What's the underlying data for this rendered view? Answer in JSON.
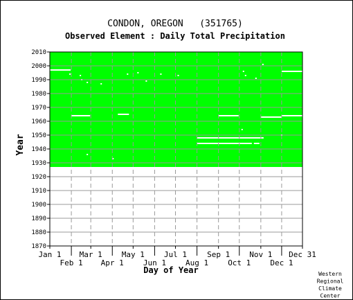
{
  "chart_data": {
    "type": "heatmap",
    "title": "CONDON, OREGON   (351765)",
    "subtitle": "Observed Element : Daily Total Precipitation",
    "xlabel": "Day of Year",
    "ylabel": "Year",
    "xlim": [
      1,
      365
    ],
    "ylim": [
      1870,
      2010
    ],
    "x_ticks_top": [
      {
        "label": "Jan 1",
        "day": 1
      },
      {
        "label": "Mar 1",
        "day": 60
      },
      {
        "label": "May 1",
        "day": 121
      },
      {
        "label": "Jul 1",
        "day": 182
      },
      {
        "label": "Sep 1",
        "day": 244
      },
      {
        "label": "Nov 1",
        "day": 305
      },
      {
        "label": "Dec 31",
        "day": 365
      }
    ],
    "x_ticks_bottom": [
      {
        "label": "Feb 1",
        "day": 32
      },
      {
        "label": "Apr 1",
        "day": 91
      },
      {
        "label": "Jun 1",
        "day": 152
      },
      {
        "label": "Aug 1",
        "day": 213
      },
      {
        "label": "Oct 1",
        "day": 274
      },
      {
        "label": "Dec 1",
        "day": 335
      }
    ],
    "y_ticks": [
      1870,
      1880,
      1890,
      1900,
      1910,
      1920,
      1930,
      1940,
      1950,
      1960,
      1970,
      1980,
      1990,
      2000,
      2010
    ],
    "grid": true,
    "colors": {
      "data": "#00ff00",
      "missing": "#ffffff",
      "grid": "#999999"
    },
    "data_coverage": {
      "year_start": 1927,
      "year_end": 2010
    },
    "missing_segments": [
      {
        "year": 1997,
        "day_start": 1,
        "day_end": 31
      },
      {
        "year": 1964,
        "day_start": 32,
        "day_end": 59
      },
      {
        "year": 1965,
        "day_start": 99,
        "day_end": 115
      },
      {
        "year": 1964,
        "day_start": 244,
        "day_end": 273
      },
      {
        "year": 1963,
        "day_start": 305,
        "day_end": 335
      },
      {
        "year": 1964,
        "day_start": 335,
        "day_end": 365
      },
      {
        "year": 1996,
        "day_start": 335,
        "day_end": 365
      },
      {
        "year": 1948,
        "day_start": 213,
        "day_end": 309
      },
      {
        "year": 1944,
        "day_start": 213,
        "day_end": 292
      },
      {
        "year": 1944,
        "day_start": 295,
        "day_end": 303
      }
    ],
    "missing_days": [
      {
        "year": 1994,
        "day": 30
      },
      {
        "year": 1993,
        "day": 45
      },
      {
        "year": 1990,
        "day": 47
      },
      {
        "year": 1988,
        "day": 55
      },
      {
        "year": 1987,
        "day": 75
      },
      {
        "year": 1994,
        "day": 113
      },
      {
        "year": 1995,
        "day": 128
      },
      {
        "year": 1989,
        "day": 140
      },
      {
        "year": 1994,
        "day": 161
      },
      {
        "year": 1993,
        "day": 186
      },
      {
        "year": 1996,
        "day": 280
      },
      {
        "year": 1993,
        "day": 283
      },
      {
        "year": 1991,
        "day": 298
      },
      {
        "year": 1954,
        "day": 278
      },
      {
        "year": 1950,
        "day": 335
      },
      {
        "year": 2001,
        "day": 308
      },
      {
        "year": 1936,
        "day": 55
      },
      {
        "year": 1933,
        "day": 92
      }
    ]
  },
  "credit": [
    "Western",
    "Regional",
    "Climate",
    "Center"
  ]
}
